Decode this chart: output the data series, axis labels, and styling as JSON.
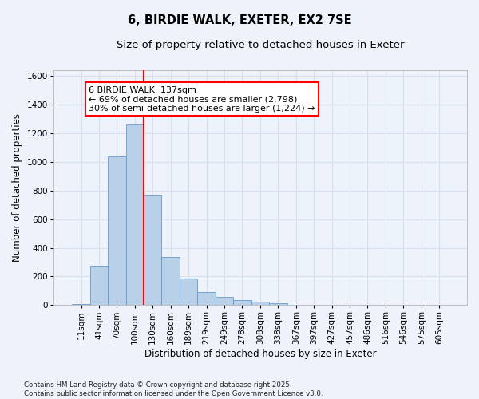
{
  "title": "6, BIRDIE WALK, EXETER, EX2 7SE",
  "subtitle": "Size of property relative to detached houses in Exeter",
  "xlabel": "Distribution of detached houses by size in Exeter",
  "ylabel": "Number of detached properties",
  "categories": [
    "11sqm",
    "41sqm",
    "70sqm",
    "100sqm",
    "130sqm",
    "160sqm",
    "189sqm",
    "219sqm",
    "249sqm",
    "278sqm",
    "308sqm",
    "338sqm",
    "367sqm",
    "397sqm",
    "427sqm",
    "457sqm",
    "486sqm",
    "516sqm",
    "546sqm",
    "575sqm",
    "605sqm"
  ],
  "values": [
    8,
    275,
    1040,
    1260,
    770,
    335,
    185,
    90,
    55,
    35,
    22,
    15,
    0,
    0,
    0,
    0,
    0,
    0,
    0,
    0,
    0
  ],
  "bar_color": "#b8d0e8",
  "bar_edgecolor": "#6699cc",
  "vline_color": "red",
  "vline_position": 3.5,
  "annotation_text": "6 BIRDIE WALK: 137sqm\n← 69% of detached houses are smaller (2,798)\n30% of semi-detached houses are larger (1,224) →",
  "annotation_box_edgecolor": "red",
  "ylim": [
    0,
    1640
  ],
  "yticks": [
    0,
    200,
    400,
    600,
    800,
    1000,
    1200,
    1400,
    1600
  ],
  "background_color": "#eef2fa",
  "grid_color": "#d8dff0",
  "footnote": "Contains HM Land Registry data © Crown copyright and database right 2025.\nContains public sector information licensed under the Open Government Licence v3.0.",
  "title_fontsize": 10.5,
  "subtitle_fontsize": 9.5,
  "axis_label_fontsize": 8.5,
  "tick_fontsize": 7.5,
  "annotation_fontsize": 8
}
